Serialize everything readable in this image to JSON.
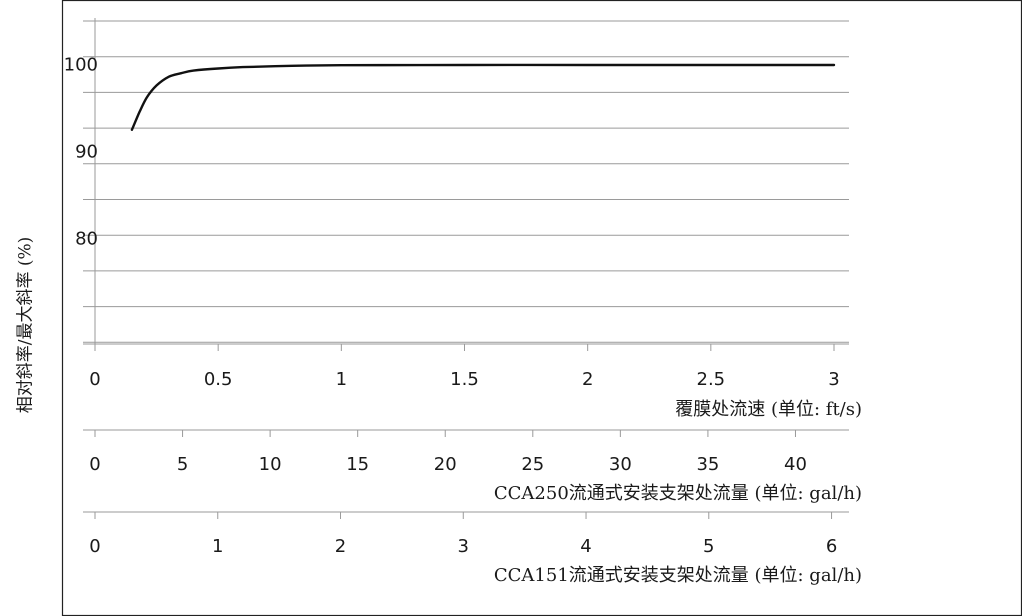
{
  "chart_data": {
    "type": "line",
    "ylabel": "相对斜率/最大斜率 (%)",
    "y_ticks": [
      "100",
      "90",
      "80"
    ],
    "y_tick_values": [
      100,
      90,
      80
    ],
    "ylim": [
      64,
      105
    ],
    "grid": true,
    "axes": [
      {
        "name": "flow-velocity",
        "label": "覆膜处流速 (单位: ft/s)",
        "ticks": [
          "0",
          "0.5",
          "1",
          "1.5",
          "2",
          "2.5",
          "3"
        ],
        "tick_values": [
          0,
          0.5,
          1,
          1.5,
          2,
          2.5,
          3
        ],
        "range": [
          0,
          3
        ]
      },
      {
        "name": "cca250-flow",
        "label": "CCA250流通式安装支架处流量 (单位: gal/h)",
        "ticks": [
          "0",
          "5",
          "10",
          "15",
          "20",
          "25",
          "30",
          "35",
          "40"
        ],
        "tick_values": [
          0,
          5,
          10,
          15,
          20,
          25,
          30,
          35,
          40
        ],
        "range": [
          0,
          42.2
        ]
      },
      {
        "name": "cca151-flow",
        "label": "CCA151流通式安装支架处流量 (单位: gal/h)",
        "ticks": [
          "0",
          "1",
          "2",
          "3",
          "4",
          "5",
          "6"
        ],
        "tick_values": [
          0,
          1,
          2,
          3,
          4,
          5,
          6
        ],
        "range": [
          0,
          6.02
        ]
      }
    ],
    "series": [
      {
        "x": [
          0.15,
          0.18,
          0.21,
          0.25,
          0.3,
          0.35,
          0.4,
          0.5,
          0.6,
          0.8,
          1.0,
          1.5,
          2.0,
          2.5,
          3.0
        ],
        "y": [
          92.5,
          94.5,
          96.2,
          97.6,
          98.6,
          99.0,
          99.3,
          99.55,
          99.7,
          99.85,
          99.92,
          99.95,
          99.95,
          99.95,
          99.95
        ]
      }
    ]
  }
}
